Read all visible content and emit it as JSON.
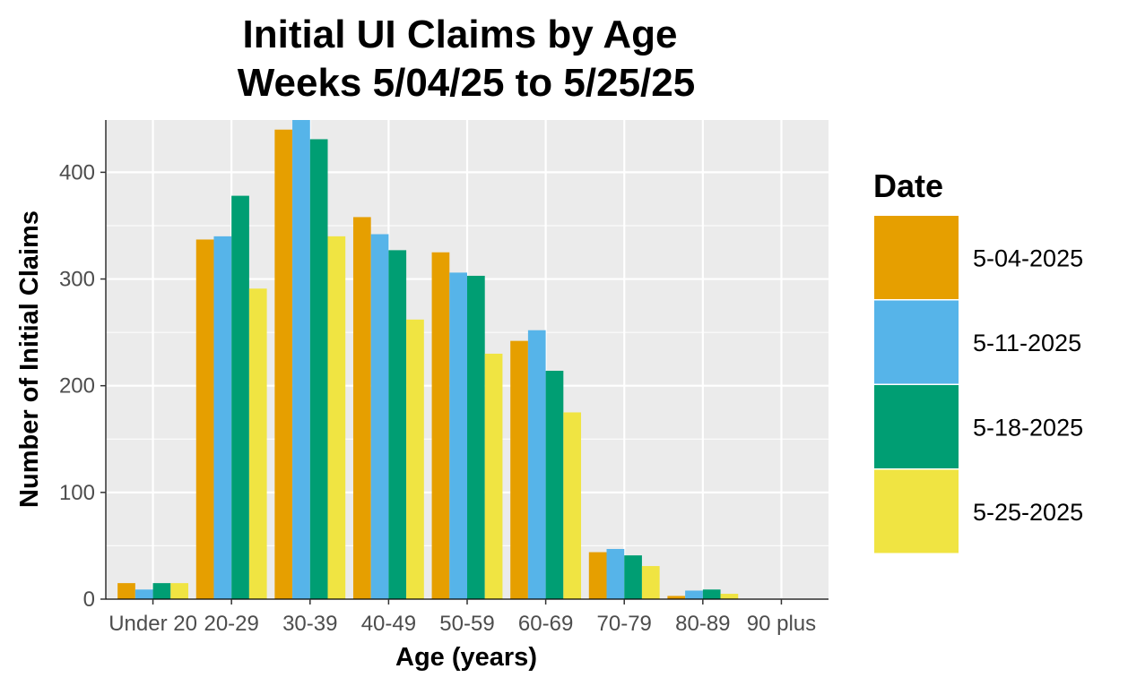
{
  "chart_data": {
    "type": "bar",
    "title_line1": "Initial UI Claims by Age",
    "title_line2": "Weeks  5/04/25 to 5/25/25",
    "xlabel": "Age (years)",
    "ylabel": "Number of Initial Claims",
    "categories": [
      "Under 20",
      "20-29",
      "30-39",
      "40-49",
      "50-59",
      "60-69",
      "70-79",
      "80-89",
      "90 plus"
    ],
    "series": [
      {
        "name": "5-04-2025",
        "color": "#E69F00",
        "values": [
          15,
          337,
          440,
          358,
          325,
          242,
          44,
          3,
          0
        ]
      },
      {
        "name": "5-11-2025",
        "color": "#56B4E9",
        "values": [
          9,
          340,
          449,
          342,
          306,
          252,
          47,
          8,
          0
        ]
      },
      {
        "name": "5-18-2025",
        "color": "#009E73",
        "values": [
          15,
          378,
          431,
          327,
          303,
          214,
          41,
          9,
          0
        ]
      },
      {
        "name": "5-25-2025",
        "color": "#F0E442",
        "values": [
          15,
          291,
          340,
          262,
          230,
          175,
          31,
          5,
          0
        ]
      }
    ],
    "yticks": [
      0,
      100,
      200,
      300,
      400
    ],
    "ylim": [
      0,
      449
    ],
    "grid": true,
    "legend_title": "Date",
    "legend_position": "right"
  }
}
